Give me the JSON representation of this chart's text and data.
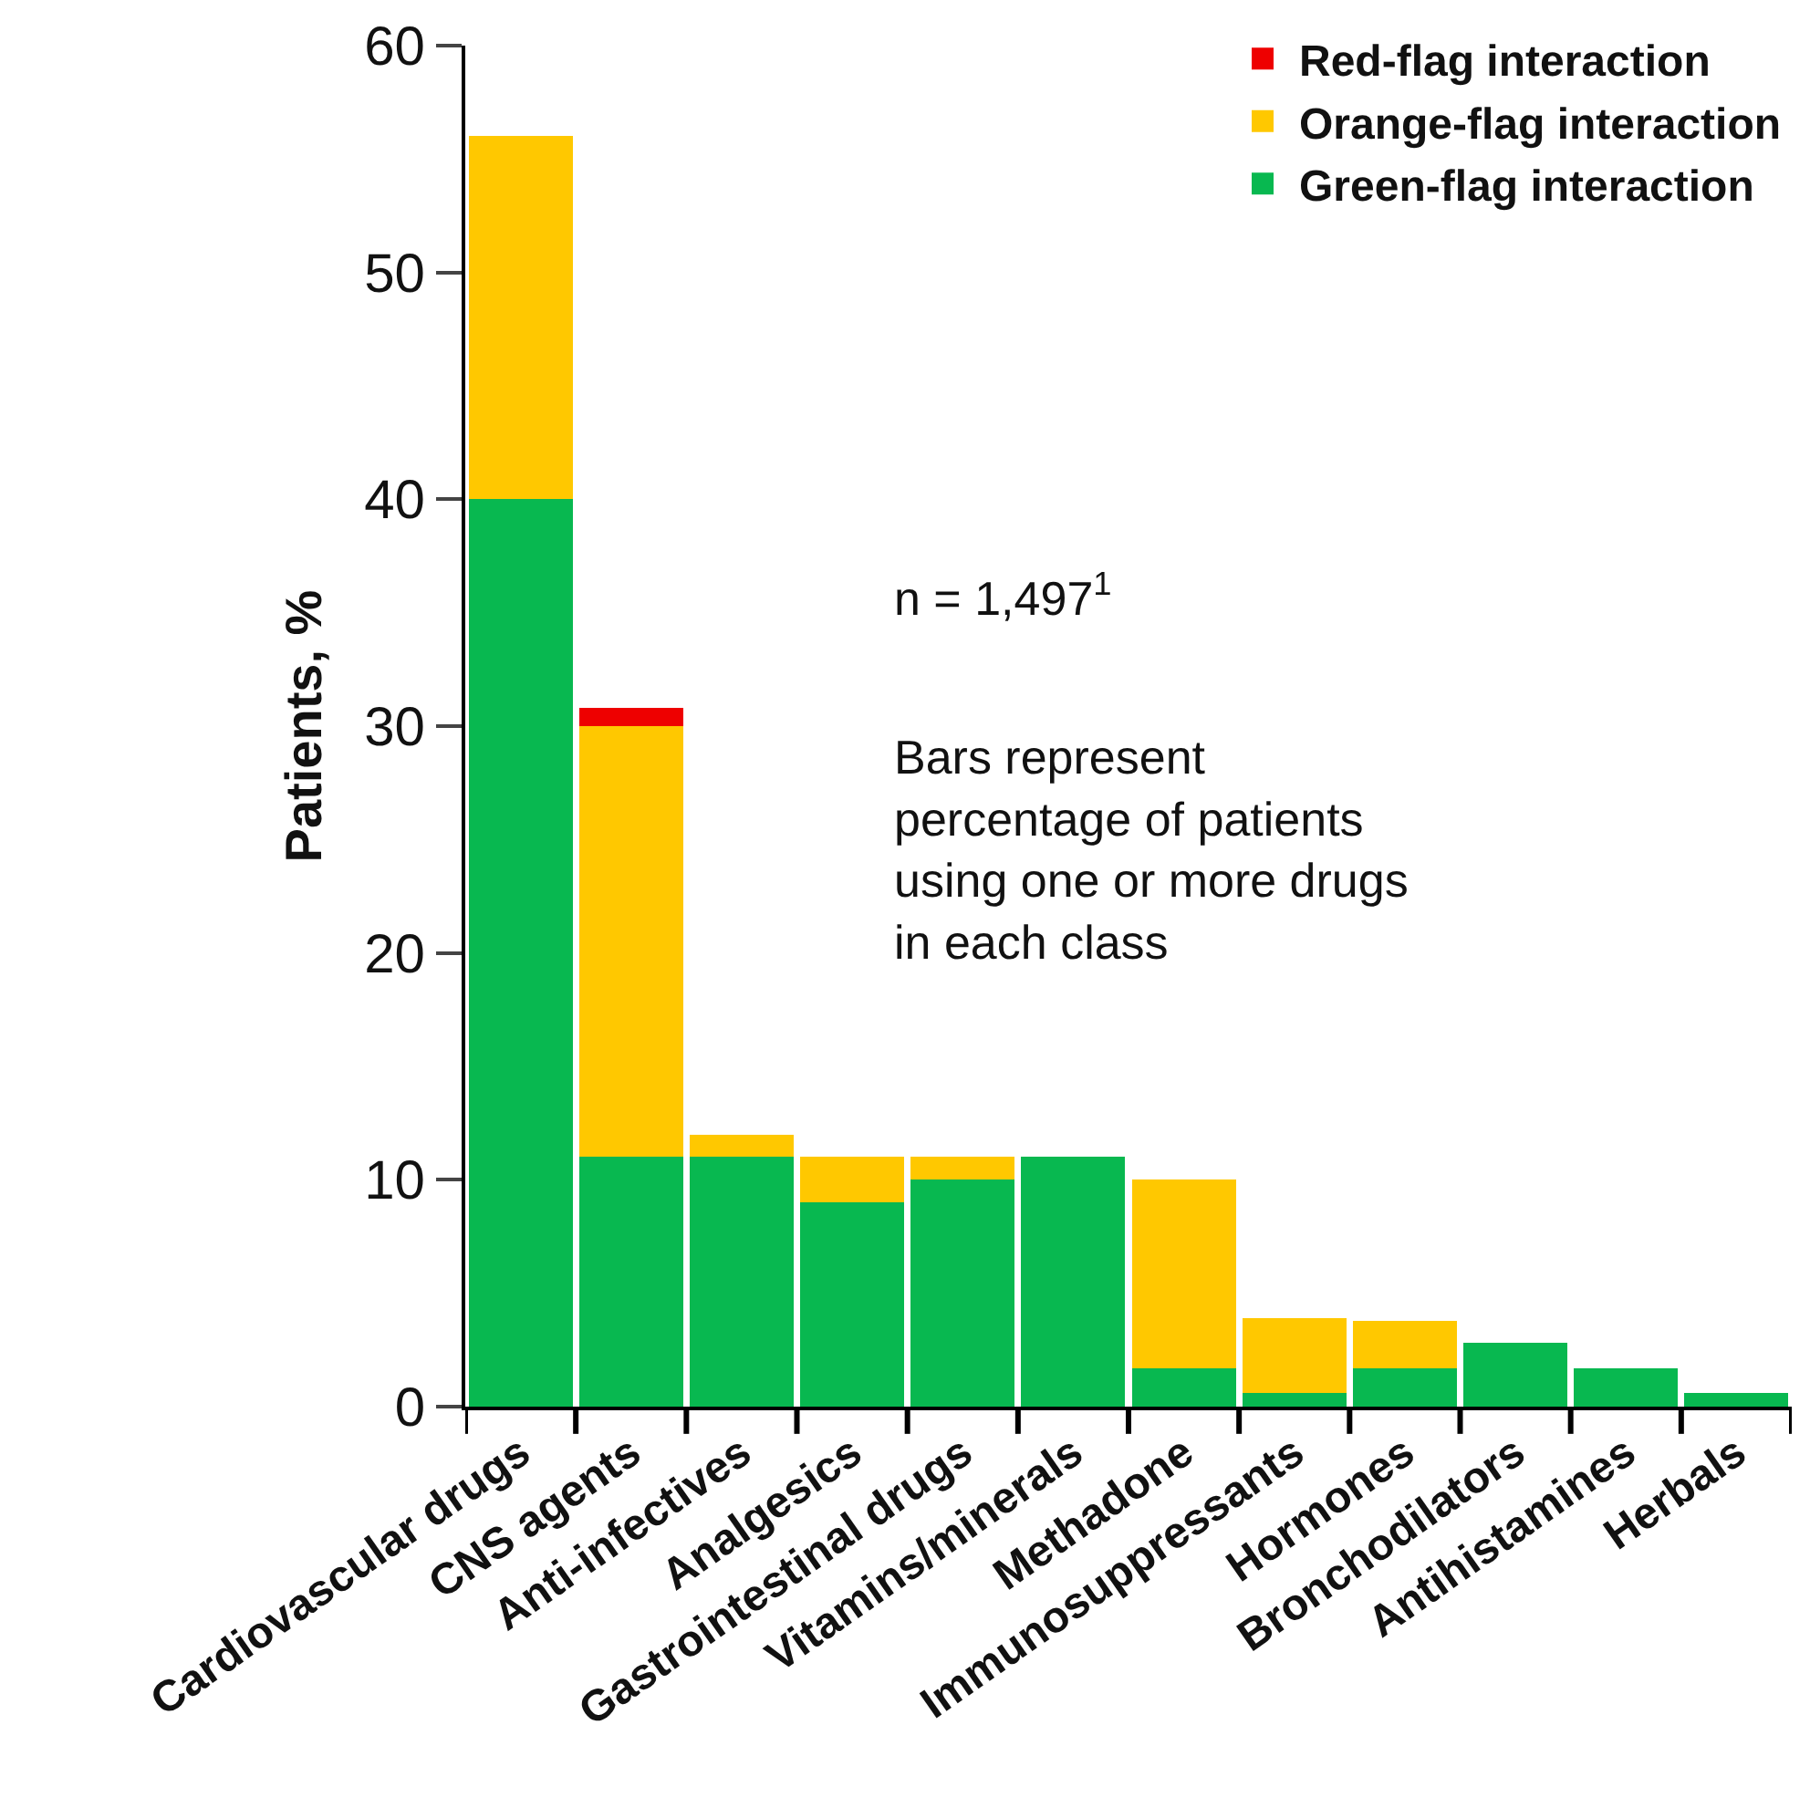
{
  "chart_data": {
    "type": "bar",
    "stacked": true,
    "ylabel": "Patients, %",
    "categories": [
      "Cardiovascular drugs",
      "CNS agents",
      "Anti-infectives",
      "Analgesics",
      "Gastrointestinal drugs",
      "Vitamins/minerals",
      "Methadone",
      "Immunosuppressants",
      "Hormones",
      "Bronchodilators",
      "Antihistamines",
      "Herbals"
    ],
    "series": [
      {
        "name": "Green-flag interaction",
        "color": "#08b850",
        "values": [
          40,
          11,
          11,
          9,
          10,
          11,
          1.7,
          0.6,
          1.7,
          2.8,
          1.7,
          0.6
        ]
      },
      {
        "name": "Orange-flag interaction",
        "color": "#ffc800",
        "values": [
          16,
          19,
          1,
          2,
          1,
          0,
          8.3,
          3.3,
          2.1,
          0,
          0,
          0
        ]
      },
      {
        "name": "Red-flag interaction",
        "color": "#ee0000",
        "values": [
          0,
          0.8,
          0,
          0,
          0,
          0,
          0,
          0,
          0,
          0,
          0,
          0
        ]
      }
    ],
    "ylim": [
      0,
      60
    ],
    "yticks": [
      0,
      10,
      20,
      30,
      40,
      50,
      60
    ],
    "legend": "top right",
    "annotations": [
      "n = 1,497$^{1}$",
      "Bars represent\npercentage of patients\nusing one or more drugs\nin each class"
    ]
  }
}
